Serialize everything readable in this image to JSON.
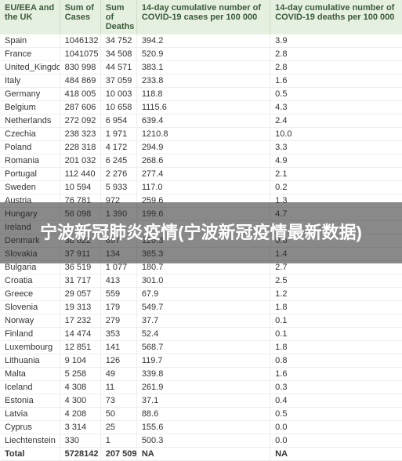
{
  "overlay_text": "宁波新冠肺炎疫情(宁波新冠疫情最新数据)",
  "columns": [
    "EU/EEA and the UK",
    "Sum of Cases",
    "Sum of Deaths",
    "14-day cumulative number of COVID-19 cases per 100 000",
    "14-day cumulative number of COVID-19 deaths per 100 000"
  ],
  "rows": [
    {
      "country": "Spain",
      "cases": "1046132",
      "deaths": "34 752",
      "cases14": "394.2",
      "deaths14": "3.9"
    },
    {
      "country": "France",
      "cases": "1041075",
      "deaths": "34 508",
      "cases14": "520.9",
      "deaths14": "2.8"
    },
    {
      "country": "United_Kingdom",
      "cases": "830 998",
      "deaths": "44 571",
      "cases14": "383.1",
      "deaths14": "2.8"
    },
    {
      "country": "Italy",
      "cases": "484 869",
      "deaths": "37 059",
      "cases14": "233.8",
      "deaths14": "1.6"
    },
    {
      "country": "Germany",
      "cases": "418 005",
      "deaths": "10 003",
      "cases14": "118.8",
      "deaths14": "0.5"
    },
    {
      "country": "Belgium",
      "cases": "287 606",
      "deaths": "10 658",
      "cases14": "1115.6",
      "deaths14": "4.3"
    },
    {
      "country": "Netherlands",
      "cases": "272 092",
      "deaths": "6 954",
      "cases14": "639.4",
      "deaths14": "2.4"
    },
    {
      "country": "Czechia",
      "cases": "238 323",
      "deaths": "1 971",
      "cases14": "1210.8",
      "deaths14": "10.0"
    },
    {
      "country": "Poland",
      "cases": "228 318",
      "deaths": "4 172",
      "cases14": "294.9",
      "deaths14": "3.3"
    },
    {
      "country": "Romania",
      "cases": "201 032",
      "deaths": "6 245",
      "cases14": "268.6",
      "deaths14": "4.9"
    },
    {
      "country": "Portugal",
      "cases": "112 440",
      "deaths": "2 276",
      "cases14": "277.4",
      "deaths14": "2.1"
    },
    {
      "country": "Sweden",
      "cases": "10 594",
      "deaths": "5 933",
      "cases14": "117.0",
      "deaths14": "0.2"
    },
    {
      "country": "Austria",
      "cases": "76 781",
      "deaths": "972",
      "cases14": "259.6",
      "deaths14": "1.3"
    },
    {
      "country": "Hungary",
      "cases": "56 098",
      "deaths": "1 390",
      "cases14": "199.6",
      "deaths14": "4.7"
    },
    {
      "country": "Ireland",
      "cases": "",
      "deaths": "",
      "cases14": "",
      "deaths14": ""
    },
    {
      "country": "Denmark",
      "cases": "38 622",
      "deaths": "697",
      "cases14": "120.3",
      "deaths14": "0.6"
    },
    {
      "country": "Slovakia",
      "cases": "37 911",
      "deaths": "134",
      "cases14": "385.3",
      "deaths14": "1.4"
    },
    {
      "country": "Bulgaria",
      "cases": "36 519",
      "deaths": "1 077",
      "cases14": "180.7",
      "deaths14": "2.7"
    },
    {
      "country": "Croatia",
      "cases": "31 717",
      "deaths": "413",
      "cases14": "301.0",
      "deaths14": "2.5"
    },
    {
      "country": "Greece",
      "cases": "29 057",
      "deaths": "559",
      "cases14": "67.9",
      "deaths14": "1.2"
    },
    {
      "country": "Slovenia",
      "cases": "19 313",
      "deaths": "179",
      "cases14": "549.7",
      "deaths14": "1.8"
    },
    {
      "country": "Norway",
      "cases": "17 232",
      "deaths": "279",
      "cases14": "37.7",
      "deaths14": "0.1"
    },
    {
      "country": "Finland",
      "cases": "14 474",
      "deaths": "353",
      "cases14": "52.4",
      "deaths14": "0.1"
    },
    {
      "country": "Luxembourg",
      "cases": "12 851",
      "deaths": "141",
      "cases14": "568.7",
      "deaths14": "1.8"
    },
    {
      "country": "Lithuania",
      "cases": "9 104",
      "deaths": "126",
      "cases14": "119.7",
      "deaths14": "0.8"
    },
    {
      "country": "Malta",
      "cases": "5 258",
      "deaths": "49",
      "cases14": "339.8",
      "deaths14": "1.6"
    },
    {
      "country": "Iceland",
      "cases": "4 308",
      "deaths": "11",
      "cases14": "261.9",
      "deaths14": "0.3"
    },
    {
      "country": "Estonia",
      "cases": "4 300",
      "deaths": "73",
      "cases14": "37.1",
      "deaths14": "0.4"
    },
    {
      "country": "Latvia",
      "cases": "4 208",
      "deaths": "50",
      "cases14": "88.6",
      "deaths14": "0.5"
    },
    {
      "country": "Cyprus",
      "cases": "3 314",
      "deaths": "25",
      "cases14": "155.6",
      "deaths14": "0.0"
    },
    {
      "country": "Liechtenstein",
      "cases": "330",
      "deaths": "1",
      "cases14": "500.3",
      "deaths14": "0.0"
    }
  ],
  "total": {
    "label": "Total",
    "cases": "5728142",
    "deaths": "207 509",
    "cases14": "NA",
    "deaths14": "NA"
  }
}
